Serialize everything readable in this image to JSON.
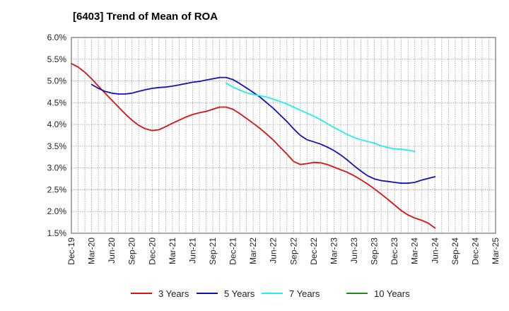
{
  "chart_data": {
    "type": "line",
    "title": "[6403]  Trend of Mean of ROA",
    "xlabel": "",
    "ylabel": "",
    "ylim": [
      1.5,
      6.0
    ],
    "y_ticks": [
      "1.5%",
      "2.0%",
      "2.5%",
      "3.0%",
      "3.5%",
      "4.0%",
      "4.5%",
      "5.0%",
      "5.5%",
      "6.0%"
    ],
    "x_tick_labels": [
      "Dec-19",
      "Mar-20",
      "Jun-20",
      "Sep-20",
      "Dec-20",
      "Mar-21",
      "Jun-21",
      "Sep-21",
      "Dec-21",
      "Mar-22",
      "Jun-22",
      "Sep-22",
      "Dec-22",
      "Mar-23",
      "Jun-23",
      "Sep-23",
      "Dec-23",
      "Mar-24",
      "Jun-24",
      "Sep-24",
      "Dec-24",
      "Mar-25"
    ],
    "grid": true,
    "legend_position": "bottom",
    "series": [
      {
        "name": "3 Years",
        "color": "#dd1111",
        "start_index": 0,
        "values": [
          5.4,
          5.32,
          5.2,
          5.05,
          4.88,
          4.72,
          4.56,
          4.4,
          4.24,
          4.1,
          3.98,
          3.9,
          3.86,
          3.88,
          3.95,
          4.03,
          4.1,
          4.17,
          4.23,
          4.27,
          4.3,
          4.35,
          4.4,
          4.4,
          4.35,
          4.25,
          4.14,
          4.03,
          3.91,
          3.78,
          3.64,
          3.48,
          3.32,
          3.15,
          3.08,
          3.1,
          3.13,
          3.12,
          3.08,
          3.02,
          2.96,
          2.9,
          2.82,
          2.73,
          2.63,
          2.52,
          2.4,
          2.28,
          2.15,
          2.02,
          1.92,
          1.85,
          1.8,
          1.73,
          1.62
        ]
      },
      {
        "name": "5 Years",
        "color": "#1111bb",
        "start_index": 3,
        "values": [
          4.92,
          4.83,
          4.76,
          4.72,
          4.7,
          4.7,
          4.72,
          4.76,
          4.8,
          4.83,
          4.85,
          4.86,
          4.88,
          4.91,
          4.94,
          4.97,
          4.99,
          5.02,
          5.05,
          5.08,
          5.08,
          5.03,
          4.94,
          4.84,
          4.74,
          4.63,
          4.5,
          4.37,
          4.22,
          4.07,
          3.9,
          3.75,
          3.65,
          3.6,
          3.55,
          3.48,
          3.4,
          3.3,
          3.18,
          3.05,
          2.93,
          2.82,
          2.75,
          2.71,
          2.69,
          2.67,
          2.65,
          2.65,
          2.67,
          2.72,
          2.76,
          2.8
        ]
      },
      {
        "name": "7 Years",
        "color": "#22eeee",
        "start_index": 23,
        "values": [
          4.95,
          4.86,
          4.79,
          4.73,
          4.69,
          4.66,
          4.63,
          4.58,
          4.53,
          4.47,
          4.4,
          4.33,
          4.26,
          4.19,
          4.11,
          4.02,
          3.93,
          3.85,
          3.77,
          3.7,
          3.65,
          3.61,
          3.57,
          3.51,
          3.47,
          3.44,
          3.43,
          3.41,
          3.38
        ]
      },
      {
        "name": "10 Years",
        "color": "#228822",
        "start_index": 0,
        "values": []
      }
    ]
  }
}
